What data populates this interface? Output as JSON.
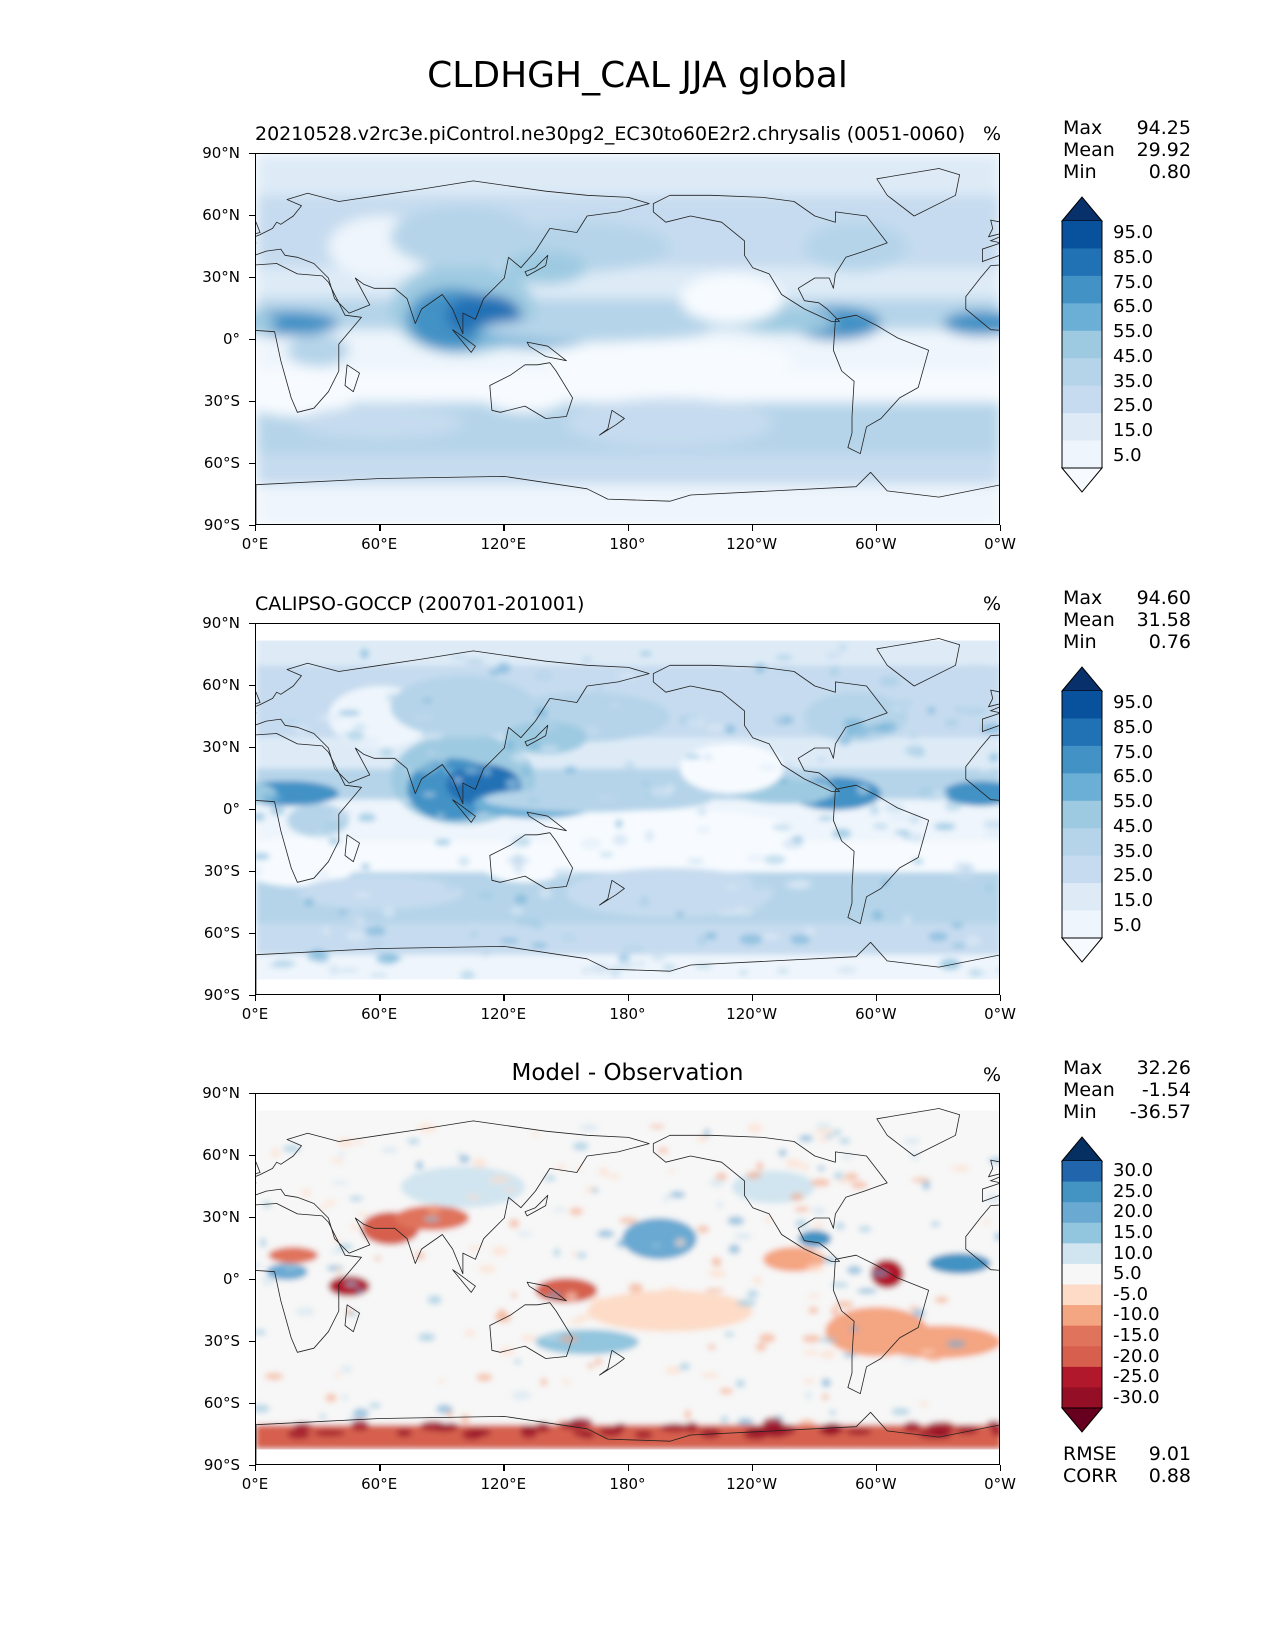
{
  "figure": {
    "title": "CLDHGH_CAL JJA global"
  },
  "chart_data": [
    {
      "type": "heatmap",
      "title": "20210528.v2rc3e.piControl.ne30pg2_EC30to60E2r2.chrysalis (0051-0060)",
      "units": "%",
      "stats": {
        "max_label": "Max",
        "max": "94.25",
        "mean_label": "Mean",
        "mean": "29.92",
        "min_label": "Min",
        "min": "0.80"
      },
      "x_ticks": [
        "0°E",
        "60°E",
        "120°E",
        "180°",
        "120°W",
        "60°W",
        "0°W"
      ],
      "y_ticks": [
        "90°N",
        "60°N",
        "30°N",
        "0°",
        "30°S",
        "60°S",
        "90°S"
      ],
      "xlim": [
        0,
        360
      ],
      "ylim": [
        -90,
        90
      ],
      "colorbar": {
        "labels": [
          "95.0",
          "85.0",
          "75.0",
          "65.0",
          "55.0",
          "45.0",
          "35.0",
          "25.0",
          "15.0",
          "5.0"
        ],
        "colors": [
          "#08306b",
          "#08519c",
          "#2171b5",
          "#4292c6",
          "#6baed6",
          "#9ecae1",
          "#b5d4e9",
          "#c6dbef",
          "#deebf7",
          "#eef5fc",
          "#f7fbff"
        ]
      }
    },
    {
      "type": "heatmap",
      "title": "CALIPSO-GOCCP (200701-201001)",
      "units": "%",
      "stats": {
        "max_label": "Max",
        "max": "94.60",
        "mean_label": "Mean",
        "mean": "31.58",
        "min_label": "Min",
        "min": "0.76"
      },
      "x_ticks": [
        "0°E",
        "60°E",
        "120°E",
        "180°",
        "120°W",
        "60°W",
        "0°W"
      ],
      "y_ticks": [
        "90°N",
        "60°N",
        "30°N",
        "0°",
        "30°S",
        "60°S",
        "90°S"
      ],
      "xlim": [
        0,
        360
      ],
      "ylim": [
        -90,
        90
      ],
      "colorbar": {
        "labels": [
          "95.0",
          "85.0",
          "75.0",
          "65.0",
          "55.0",
          "45.0",
          "35.0",
          "25.0",
          "15.0",
          "5.0"
        ],
        "colors": [
          "#08306b",
          "#08519c",
          "#2171b5",
          "#4292c6",
          "#6baed6",
          "#9ecae1",
          "#b5d4e9",
          "#c6dbef",
          "#deebf7",
          "#eef5fc",
          "#f7fbff"
        ]
      }
    },
    {
      "type": "heatmap",
      "title": "Model - Observation",
      "units": "%",
      "stats": {
        "max_label": "Max",
        "max": "32.26",
        "mean_label": "Mean",
        "mean": "-1.54",
        "min_label": "Min",
        "min": "-36.57"
      },
      "extra_stats": {
        "rmse_label": "RMSE",
        "rmse": "9.01",
        "corr_label": "CORR",
        "corr": "0.88"
      },
      "x_ticks": [
        "0°E",
        "60°E",
        "120°E",
        "180°",
        "120°W",
        "60°W",
        "0°W"
      ],
      "y_ticks": [
        "90°N",
        "60°N",
        "30°N",
        "0°",
        "30°S",
        "60°S",
        "90°S"
      ],
      "xlim": [
        0,
        360
      ],
      "ylim": [
        -90,
        90
      ],
      "colorbar": {
        "labels": [
          "30.0",
          "25.0",
          "20.0",
          "15.0",
          "10.0",
          "5.0",
          "-5.0",
          "-10.0",
          "-15.0",
          "-20.0",
          "-25.0",
          "-30.0"
        ],
        "colors": [
          "#053061",
          "#2166ac",
          "#4393c3",
          "#6aa9d2",
          "#92c5de",
          "#d1e5f0",
          "#f7f7f7",
          "#fddbc7",
          "#f4a582",
          "#e0735c",
          "#d6604d",
          "#b2182b",
          "#940e26",
          "#67001f"
        ]
      }
    }
  ]
}
